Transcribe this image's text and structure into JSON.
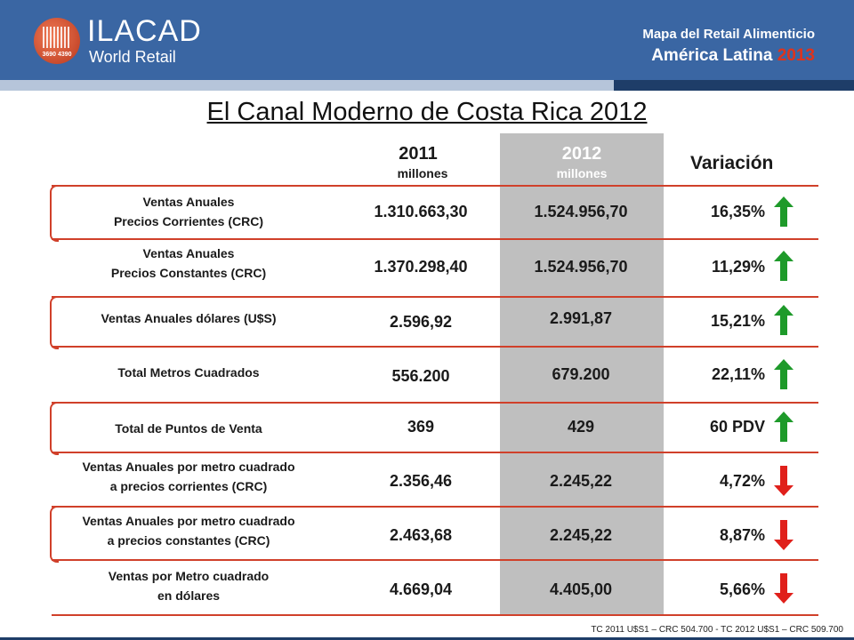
{
  "header": {
    "logo_name": "ILACAD",
    "logo_sub": "World Retail",
    "logo_code": "3690 4390",
    "line1": "Mapa del Retail Alimenticio",
    "line2_prefix": "América Latina",
    "line2_year": "2013"
  },
  "title": "El Canal Moderno de Costa Rica 2012",
  "columns": {
    "y2011": "2011",
    "y2011_unit": "millones",
    "y2012": "2012",
    "y2012_unit": "millones",
    "variation": "Variación"
  },
  "rows": [
    {
      "label1": "Ventas Anuales",
      "label2": "Precios Corrientes  (CRC)",
      "v2011": "1.310.663,30",
      "v2012": "1.524.956,70",
      "variation": "16,35%",
      "trend": "up"
    },
    {
      "label1": "Ventas Anuales",
      "label2": "Precios Constantes  (CRC)",
      "v2011": "1.370.298,40",
      "v2012": "1.524.956,70",
      "variation": "11,29%",
      "trend": "up"
    },
    {
      "label1": "Ventas Anuales dólares  (U$S)",
      "label2": "",
      "v2011": "2.596,92",
      "v2012": "2.991,87",
      "variation": "15,21%",
      "trend": "up"
    },
    {
      "label1": "Total Metros Cuadrados",
      "label2": "",
      "v2011": "556.200",
      "v2012": "679.200",
      "variation": "22,11%",
      "trend": "up"
    },
    {
      "label1": "Total de Puntos de Venta",
      "label2": "",
      "v2011": "369",
      "v2012": "429",
      "variation": "60 PDV",
      "trend": "up"
    },
    {
      "label1": "Ventas Anuales por metro cuadrado",
      "label2": "a precios corrientes (CRC)",
      "v2011": "2.356,46",
      "v2012": "2.245,22",
      "variation": "4,72%",
      "trend": "down"
    },
    {
      "label1": "Ventas Anuales por metro cuadrado",
      "label2": "a precios constantes (CRC)",
      "v2011": "2.463,68",
      "v2012": "2.245,22",
      "variation": "8,87%",
      "trend": "down"
    },
    {
      "label1": "Ventas  por  Metro cuadrado",
      "label2": "en dólares",
      "v2011": "4.669,04",
      "v2012": "4.405,00",
      "variation": "5,66%",
      "trend": "down"
    }
  ],
  "footnote": "TC 2011 U$S1 – CRC 504.700 - TC 2012 U$S1 – CRC 509.700",
  "colors": {
    "header": "#3a66a3",
    "accent_red": "#e0331b",
    "up_arrow": "#1e9a2a",
    "down_arrow": "#e0201b",
    "col_2012": "#bfbfbf"
  }
}
